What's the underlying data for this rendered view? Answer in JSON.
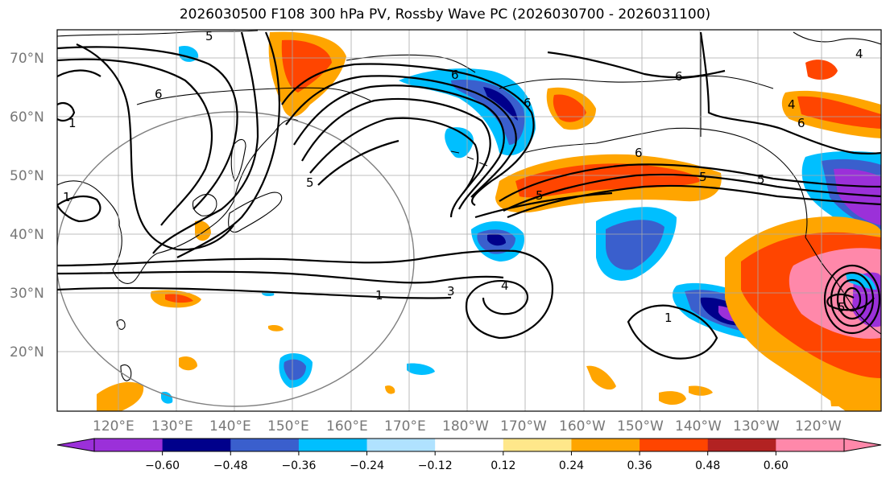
{
  "title": "2026030500 F108 300 hPa PV, Rossby Wave PC (2026030700 - 2026031100)",
  "map": {
    "lat_labels": [
      "70°N",
      "60°N",
      "50°N",
      "40°N",
      "30°N",
      "20°N"
    ],
    "lon_labels": [
      "120°E",
      "130°E",
      "140°E",
      "150°E",
      "160°E",
      "170°E",
      "180°W",
      "170°W",
      "160°W",
      "150°W",
      "140°W",
      "130°W",
      "120°W"
    ],
    "contour_labels": [
      "5",
      "6",
      "1",
      "6",
      "6",
      "6",
      "5",
      "5",
      "1",
      "1",
      "3",
      "4",
      "1",
      "5",
      "6",
      "5",
      "6",
      "4",
      "5",
      "4"
    ]
  },
  "colorbar": {
    "colors": [
      "#9b30d9",
      "#00008b",
      "#3a5fcd",
      "#00bfff",
      "#b0e2ff",
      "#ffffff",
      "#ffe78a",
      "#ffa500",
      "#ff4500",
      "#b22222",
      "#ff88aa"
    ],
    "tick_labels": [
      "−0.60",
      "−0.48",
      "−0.36",
      "−0.24",
      "−0.12",
      "0.12",
      "0.24",
      "0.36",
      "0.48",
      "0.60"
    ]
  }
}
